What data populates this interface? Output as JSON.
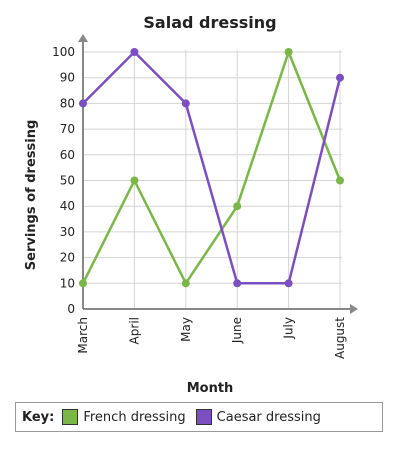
{
  "chart_data": {
    "type": "line",
    "title": "Salad dressing",
    "xlabel": "Month",
    "ylabel": "Servings of dressing",
    "categories": [
      "March",
      "April",
      "May",
      "June",
      "July",
      "August"
    ],
    "ylim": [
      0,
      100
    ],
    "yticks": [
      0,
      10,
      20,
      30,
      40,
      50,
      60,
      70,
      80,
      90,
      100
    ],
    "grid": true,
    "legend_title": "Key:",
    "legend_placement": "bottom",
    "series": [
      {
        "name": "French dressing",
        "color": "#7ab648",
        "values": [
          10,
          50,
          10,
          40,
          100,
          50
        ]
      },
      {
        "name": "Caesar dressing",
        "color": "#7b4fc0",
        "values": [
          80,
          100,
          80,
          10,
          10,
          90
        ]
      }
    ]
  }
}
